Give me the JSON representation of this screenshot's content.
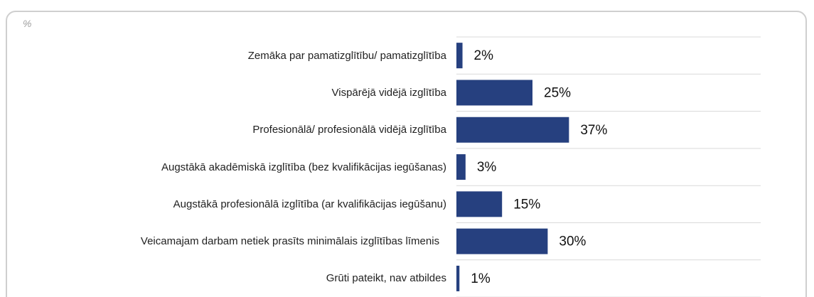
{
  "chart_data": {
    "type": "bar",
    "orientation": "horizontal",
    "subtitle": "%",
    "categories": [
      "Zemāka par pamatizglītību/ pamatizglītība",
      "Vispārējā vidējā izglītība",
      "Profesionālā/ profesionālā vidējā izglītība",
      "Augstākā akadēmiskā izglītība (bez kvalifikācijas iegūšanas)",
      "Augstākā profesionālā izglītība (ar kvalifikācijas iegūšanu)",
      "Veicamajam darbam netiek prasīts minimālais izglītības līmenis",
      "Grūti pateikt, nav atbildes"
    ],
    "values": [
      2,
      25,
      37,
      3,
      15,
      30,
      1
    ],
    "value_labels": [
      "2%",
      "25%",
      "37%",
      "3%",
      "15%",
      "30%",
      "1%"
    ],
    "color": "#26407f",
    "xlim": [
      0,
      100
    ],
    "grid": true
  }
}
